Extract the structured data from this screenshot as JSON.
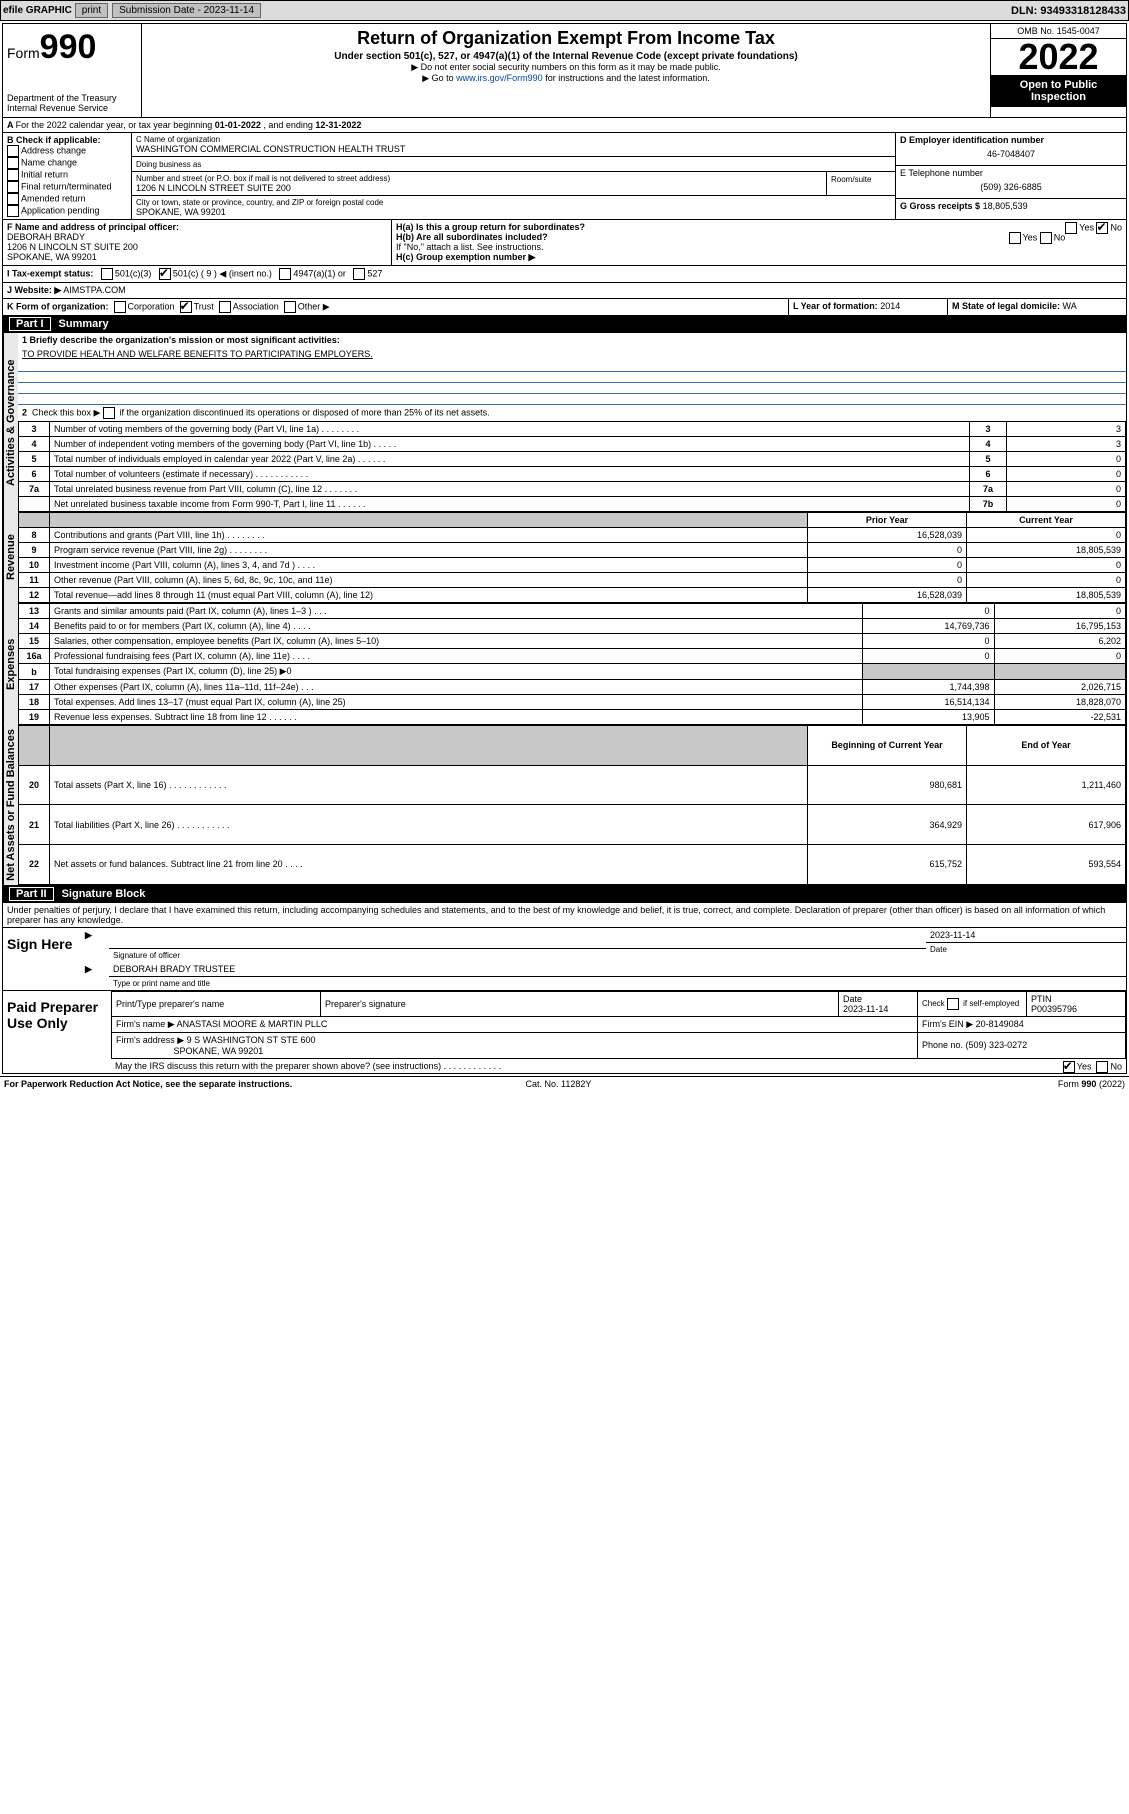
{
  "topbar": {
    "efile": "efile GRAPHIC",
    "print": "print",
    "subdate_label": "Submission Date - ",
    "subdate": "2023-11-14",
    "dln_label": "DLN: ",
    "dln": "93493318128433"
  },
  "header": {
    "form_word": "Form",
    "form_num": "990",
    "dept": "Department of the Treasury",
    "irs": "Internal Revenue Service",
    "title": "Return of Organization Exempt From Income Tax",
    "sub1": "Under section 501(c), 527, or 4947(a)(1) of the Internal Revenue Code (except private foundations)",
    "sub2": "▶ Do not enter social security numbers on this form as it may be made public.",
    "sub3_pre": "▶ Go to ",
    "sub3_link": "www.irs.gov/Form990",
    "sub3_post": " for instructions and the latest information.",
    "omb": "OMB No. 1545-0047",
    "year": "2022",
    "otp": "Open to Public Inspection"
  },
  "A": {
    "line_pre": "For the 2022 calendar year, or tax year beginning ",
    "begin": "01-01-2022",
    "mid": " , and ending ",
    "end": "12-31-2022"
  },
  "B": {
    "heading": "B Check if applicable:",
    "items": [
      "Address change",
      "Name change",
      "Initial return",
      "Final return/terminated",
      "Amended return",
      "Application pending"
    ]
  },
  "C": {
    "name_label": "C Name of organization",
    "name": "WASHINGTON COMMERCIAL CONSTRUCTION HEALTH TRUST",
    "dba_label": "Doing business as",
    "addr_label": "Number and street (or P.O. box if mail is not delivered to street address)",
    "room_label": "Room/suite",
    "addr": "1206 N LINCOLN STREET SUITE 200",
    "city_label": "City or town, state or province, country, and ZIP or foreign postal code",
    "city": "SPOKANE, WA  99201"
  },
  "D": {
    "label": "D Employer identification number",
    "val": "46-7048407"
  },
  "E": {
    "label": "E Telephone number",
    "val": "(509) 326-6885"
  },
  "G": {
    "label": "G Gross receipts $",
    "val": "18,805,539"
  },
  "F": {
    "label": "F  Name and address of principal officer:",
    "name": "DEBORAH BRADY",
    "addr": "1206 N LINCOLN ST SUITE 200",
    "city": "SPOKANE, WA  99201"
  },
  "H": {
    "a": "H(a)  Is this a group return for subordinates?",
    "b": "H(b)  Are all subordinates included?",
    "b_note": "If \"No,\" attach a list. See instructions.",
    "c": "H(c)  Group exemption number ▶",
    "yes": "Yes",
    "no": "No"
  },
  "I": {
    "label": "I   Tax-exempt status:",
    "o1": "501(c)(3)",
    "o2": "501(c) ( 9 ) ◀ (insert no.)",
    "o3": "4947(a)(1) or",
    "o4": "527"
  },
  "J": {
    "label": "J   Website: ▶",
    "val": "AIMSTPA.COM"
  },
  "K": {
    "label": "K Form of organization:",
    "o1": "Corporation",
    "o2": "Trust",
    "o3": "Association",
    "o4": "Other ▶"
  },
  "L": {
    "label": "L Year of formation: ",
    "val": "2014"
  },
  "M": {
    "label": "M State of legal domicile: ",
    "val": "WA"
  },
  "part1": {
    "bar": "Part I",
    "title": "Summary",
    "mission_label": "1   Briefly describe the organization's mission or most significant activities:",
    "mission": "TO PROVIDE HEALTH AND WELFARE BENEFITS TO PARTICIPATING EMPLOYERS.",
    "l2": "2   Check this box ▶      if the organization discontinued its operations or disposed of more than 25% of its net assets."
  },
  "sections": {
    "gov": "Activities & Governance",
    "rev": "Revenue",
    "exp": "Expenses",
    "net": "Net Assets or Fund Balances"
  },
  "cols": {
    "prior": "Prior Year",
    "curr": "Current Year",
    "beg": "Beginning of Current Year",
    "end": "End of Year"
  },
  "lines_gov": [
    {
      "n": "3",
      "t": "Number of voting members of the governing body (Part VI, line 1a)  .    .    .    .    .    .    .    .",
      "box": "3",
      "v": "3"
    },
    {
      "n": "4",
      "t": "Number of independent voting members of the governing body (Part VI, line 1b)   .    .    .    .    .",
      "box": "4",
      "v": "3"
    },
    {
      "n": "5",
      "t": "Total number of individuals employed in calendar year 2022 (Part V, line 2a)   .    .    .    .    .    .",
      "box": "5",
      "v": "0"
    },
    {
      "n": "6",
      "t": "Total number of volunteers (estimate if necessary)    .    .    .    .    .    .    .    .    .    .    .",
      "box": "6",
      "v": "0"
    },
    {
      "n": "7a",
      "t": "Total unrelated business revenue from Part VIII, column (C), line 12   .    .    .    .    .    .    .",
      "box": "7a",
      "v": "0"
    },
    {
      "n": "",
      "t": "Net unrelated business taxable income from Form 990-T, Part I, line 11    .    .    .    .    .    .",
      "box": "7b",
      "v": "0"
    }
  ],
  "lines_rev": [
    {
      "n": "8",
      "t": "Contributions and grants (Part VIII, line 1h)   .    .    .    .    .    .    .    .",
      "p": "16,528,039",
      "c": "0"
    },
    {
      "n": "9",
      "t": "Program service revenue (Part VIII, line 2g)   .    .    .    .    .    .    .    .",
      "p": "0",
      "c": "18,805,539"
    },
    {
      "n": "10",
      "t": "Investment income (Part VIII, column (A), lines 3, 4, and 7d )   .    .    .    .",
      "p": "0",
      "c": "0"
    },
    {
      "n": "11",
      "t": "Other revenue (Part VIII, column (A), lines 5, 6d, 8c, 9c, 10c, and 11e)",
      "p": "0",
      "c": "0"
    },
    {
      "n": "12",
      "t": "Total revenue—add lines 8 through 11 (must equal Part VIII, column (A), line 12)",
      "p": "16,528,039",
      "c": "18,805,539"
    }
  ],
  "lines_exp": [
    {
      "n": "13",
      "t": "Grants and similar amounts paid (Part IX, column (A), lines 1–3 )   .    .    .",
      "p": "0",
      "c": "0"
    },
    {
      "n": "14",
      "t": "Benefits paid to or for members (Part IX, column (A), line 4)   .    .    .    .",
      "p": "14,769,736",
      "c": "16,795,153"
    },
    {
      "n": "15",
      "t": "Salaries, other compensation, employee benefits (Part IX, column (A), lines 5–10)",
      "p": "0",
      "c": "6,202"
    },
    {
      "n": "16a",
      "t": "Professional fundraising fees (Part IX, column (A), line 11e)   .    .    .    .",
      "p": "0",
      "c": "0"
    },
    {
      "n": "b",
      "t": "Total fundraising expenses (Part IX, column (D), line 25) ▶0",
      "p": "shade",
      "c": "shade"
    },
    {
      "n": "17",
      "t": "Other expenses (Part IX, column (A), lines 11a–11d, 11f–24e)  .    .    .",
      "p": "1,744,398",
      "c": "2,026,715"
    },
    {
      "n": "18",
      "t": "Total expenses. Add lines 13–17 (must equal Part IX, column (A), line 25)",
      "p": "16,514,134",
      "c": "18,828,070"
    },
    {
      "n": "19",
      "t": "Revenue less expenses. Subtract line 18 from line 12   .    .    .    .    .    .",
      "p": "13,905",
      "c": "-22,531"
    }
  ],
  "lines_net": [
    {
      "n": "20",
      "t": "Total assets (Part X, line 16)  .    .    .    .    .    .    .    .    .    .    .    .",
      "p": "980,681",
      "c": "1,211,460"
    },
    {
      "n": "21",
      "t": "Total liabilities (Part X, line 26)   .    .    .    .    .    .    .    .    .    .    .",
      "p": "364,929",
      "c": "617,906"
    },
    {
      "n": "22",
      "t": "Net assets or fund balances. Subtract line 21 from line 20   .    .    .    .",
      "p": "615,752",
      "c": "593,554"
    }
  ],
  "part2": {
    "bar": "Part II",
    "title": "Signature Block",
    "decl": "Under penalties of perjury, I declare that I have examined this return, including accompanying schedules and statements, and to the best of my knowledge and belief, it is true, correct, and complete. Declaration of preparer (other than officer) is based on all information of which preparer has any knowledge."
  },
  "sign": {
    "here": "Sign Here",
    "sig_label": "Signature of officer",
    "date": "2023-11-14",
    "date_label": "Date",
    "name": "DEBORAH BRADY TRUSTEE",
    "name_label": "Type or print name and title"
  },
  "paid": {
    "label": "Paid Preparer Use Only",
    "h_name": "Print/Type preparer's name",
    "h_sig": "Preparer's signature",
    "h_date": "Date",
    "h_date_v": "2023-11-14",
    "h_chk": "Check        if self-employed",
    "h_ptin": "PTIN",
    "ptin": "P00395796",
    "firm_label": "Firm's name   ▶",
    "firm": "ANASTASI MOORE & MARTIN PLLC",
    "ein_label": "Firm's EIN ▶",
    "ein": "20-8149084",
    "addr_label": "Firm's address ▶",
    "addr1": "9 S WASHINGTON ST STE 600",
    "addr2": "SPOKANE, WA  99201",
    "phone_label": "Phone no. ",
    "phone": "(509) 323-0272",
    "discuss": "May the IRS discuss this return with the preparer shown above? (see instructions)   .    .    .    .    .    .    .    .    .    .    .    ."
  },
  "footer": {
    "l": "For Paperwork Reduction Act Notice, see the separate instructions.",
    "m": "Cat. No. 11282Y",
    "r": "Form 990 (2022)"
  }
}
